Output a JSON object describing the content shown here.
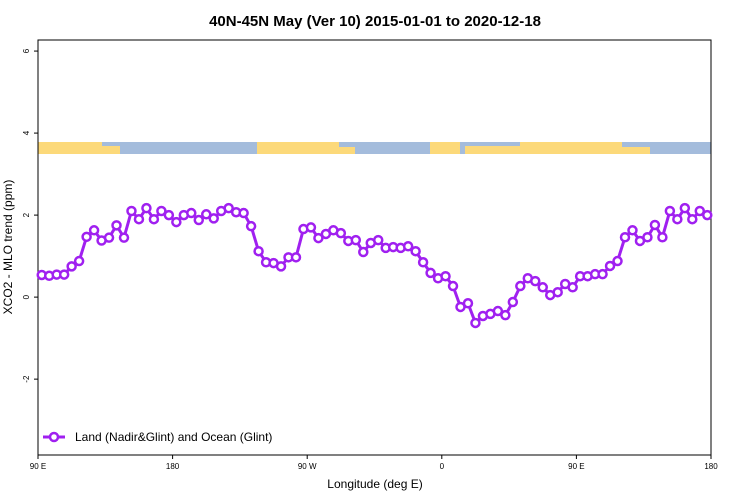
{
  "chart_data": {
    "type": "line",
    "title": "40N-45N May (Ver 10)   2015-01-01 to 2020-12-18",
    "xlabel": "Longitude (deg E)",
    "ylabel": "XCO2 - MLO trend (ppm)",
    "xlim": [
      90,
      540
    ],
    "xticks": [
      {
        "value": 90,
        "label": "90 E"
      },
      {
        "value": 180,
        "label": "180"
      },
      {
        "value": 270,
        "label": "90 W"
      },
      {
        "value": 360,
        "label": "0"
      },
      {
        "value": 450,
        "label": "90 E"
      },
      {
        "value": 540,
        "label": "180"
      }
    ],
    "ylim": [
      -3.85,
      6.27
    ],
    "yticks": [
      -2,
      0,
      2,
      4,
      6
    ],
    "legend": "bottom-left",
    "x": [
      92.5,
      97.5,
      102.5,
      107.5,
      112.5,
      117.5,
      122.5,
      127.5,
      132.5,
      137.5,
      142.5,
      147.5,
      152.5,
      157.5,
      162.5,
      167.5,
      172.5,
      177.5,
      182.5,
      187.5,
      192.5,
      197.5,
      202.5,
      207.5,
      212.5,
      217.5,
      222.5,
      227.5,
      232.5,
      237.5,
      242.5,
      247.5,
      252.5,
      257.5,
      262.5,
      267.5,
      272.5,
      277.5,
      282.5,
      287.5,
      292.5,
      297.5,
      302.5,
      307.5,
      312.5,
      317.5,
      322.5,
      327.5,
      332.5,
      337.5,
      342.5,
      347.5,
      352.5,
      357.5,
      362.5,
      367.5,
      372.5,
      377.5,
      382.5,
      387.5,
      392.5,
      397.5,
      402.5,
      407.5,
      412.5,
      417.5,
      422.5,
      427.5,
      432.5,
      437.5,
      442.5,
      447.5,
      452.5,
      457.5,
      462.5,
      467.5,
      472.5,
      477.5,
      482.5,
      487.5,
      492.5,
      497.5,
      502.5,
      507.5,
      512.5,
      517.5,
      522.5,
      527.5,
      532.5,
      537.5
    ],
    "series": [
      {
        "name": "Land (Nadir&Glint) and Ocean (Glint)",
        "color": "#a020f0",
        "values": [
          0.54,
          0.52,
          0.55,
          0.55,
          0.75,
          0.88,
          1.47,
          1.63,
          1.38,
          1.45,
          1.75,
          1.45,
          2.1,
          1.9,
          2.17,
          1.9,
          2.1,
          2.0,
          1.83,
          2.0,
          2.05,
          1.88,
          2.02,
          1.92,
          2.1,
          2.17,
          2.07,
          2.05,
          1.73,
          1.12,
          0.85,
          0.83,
          0.75,
          0.97,
          0.97,
          1.66,
          1.7,
          1.44,
          1.54,
          1.63,
          1.56,
          1.37,
          1.39,
          1.1,
          1.32,
          1.39,
          1.2,
          1.22,
          1.2,
          1.24,
          1.12,
          0.85,
          0.59,
          0.46,
          0.51,
          0.27,
          -0.24,
          -0.15,
          -0.63,
          -0.46,
          -0.41,
          -0.34,
          -0.44,
          -0.12,
          0.27,
          0.46,
          0.39,
          0.24,
          0.05,
          0.12,
          0.32,
          0.24,
          0.51,
          0.51,
          0.56,
          0.56,
          0.76,
          0.88,
          1.46,
          1.63,
          1.37,
          1.46,
          1.76,
          1.46,
          2.1,
          1.9,
          2.17,
          1.9,
          2.1,
          2.0
        ]
      }
    ]
  }
}
